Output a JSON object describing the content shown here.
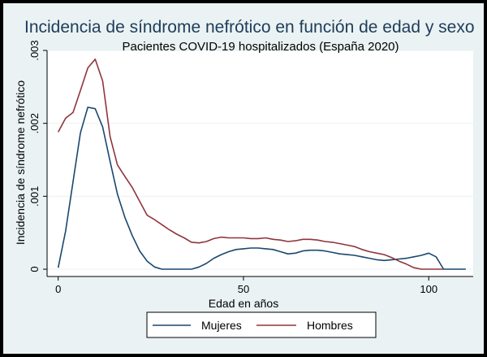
{
  "chart_data": {
    "type": "line",
    "title": "Incidencia de síndrome nefrótico en función de edad y sexo",
    "subtitle": "Pacientes COVID-19 hospitalizados (España 2020)",
    "xlabel": "Edad en años",
    "ylabel": "Incidencia de síndrome nefrótico",
    "xlim": [
      -3,
      112
    ],
    "ylim": [
      -0.0001,
      0.003
    ],
    "x_ticks": [
      {
        "value": 0,
        "label": "0"
      },
      {
        "value": 50,
        "label": "50"
      },
      {
        "value": 100,
        "label": "100"
      }
    ],
    "y_ticks": [
      {
        "value": 0,
        "label": "0"
      },
      {
        "value": 0.001,
        "label": ".001"
      },
      {
        "value": 0.002,
        "label": ".002"
      },
      {
        "value": 0.003,
        "label": ".003"
      }
    ],
    "grid": "horizontal",
    "legend_position": "bottom",
    "series": [
      {
        "name": "Mujeres",
        "color": "#1a476f",
        "x": [
          0,
          2,
          4,
          6,
          8,
          10,
          12,
          14,
          16,
          18,
          20,
          22,
          24,
          26,
          28,
          30,
          32,
          34,
          36,
          38,
          40,
          42,
          44,
          46,
          48,
          50,
          52,
          54,
          56,
          58,
          60,
          62,
          64,
          66,
          68,
          70,
          72,
          74,
          76,
          78,
          80,
          82,
          84,
          86,
          88,
          90,
          92,
          94,
          96,
          98,
          100,
          102,
          104,
          106,
          108,
          110
        ],
        "y": [
          2e-05,
          0.00052,
          0.0012,
          0.00187,
          0.00222,
          0.0022,
          0.00195,
          0.00148,
          0.00103,
          0.00071,
          0.00046,
          0.00025,
          0.00011,
          3e-05,
          0.0,
          0.0,
          0.0,
          0.0,
          0.0,
          3e-05,
          8e-05,
          0.00015,
          0.0002,
          0.00024,
          0.00027,
          0.00028,
          0.00029,
          0.00029,
          0.00028,
          0.00027,
          0.00024,
          0.00021,
          0.00022,
          0.00025,
          0.00026,
          0.00026,
          0.00025,
          0.00023,
          0.00021,
          0.0002,
          0.00019,
          0.00017,
          0.00015,
          0.00013,
          0.00012,
          0.00013,
          0.00014,
          0.00015,
          0.00017,
          0.00019,
          0.00022,
          0.00017,
          0.0,
          0.0,
          0.0,
          0.0
        ]
      },
      {
        "name": "Hombres",
        "color": "#90353b",
        "x": [
          0,
          2,
          4,
          6,
          8,
          10,
          12,
          14,
          16,
          18,
          20,
          22,
          24,
          26,
          28,
          30,
          32,
          34,
          36,
          38,
          40,
          42,
          44,
          46,
          48,
          50,
          52,
          54,
          56,
          58,
          60,
          62,
          64,
          66,
          68,
          70,
          72,
          74,
          76,
          78,
          80,
          82,
          84,
          86,
          88,
          90,
          92,
          94,
          96,
          98,
          100,
          102,
          104
        ],
        "y": [
          0.00188,
          0.00207,
          0.00215,
          0.00245,
          0.00276,
          0.00288,
          0.00258,
          0.00182,
          0.00143,
          0.00127,
          0.00112,
          0.00093,
          0.00074,
          0.00068,
          0.00061,
          0.00054,
          0.00048,
          0.00043,
          0.00037,
          0.00036,
          0.00038,
          0.00042,
          0.00044,
          0.00043,
          0.00043,
          0.00043,
          0.00042,
          0.00042,
          0.00043,
          0.00041,
          0.0004,
          0.00038,
          0.00039,
          0.00041,
          0.00041,
          0.0004,
          0.00038,
          0.00037,
          0.00035,
          0.00033,
          0.00031,
          0.00027,
          0.00024,
          0.00022,
          0.0002,
          0.00016,
          0.00011,
          7e-05,
          2e-05,
          0.0,
          0.0,
          0.0,
          0.0
        ]
      }
    ]
  }
}
